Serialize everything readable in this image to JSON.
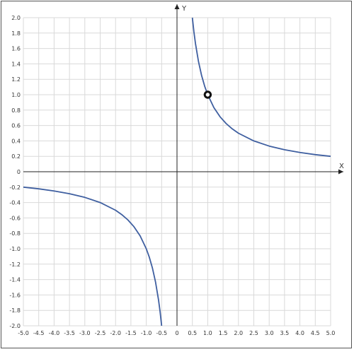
{
  "chart_data": {
    "type": "line",
    "function": "y = 1/x",
    "xlabel": "X",
    "ylabel": "Y",
    "xlim": [
      -5.0,
      5.0
    ],
    "ylim": [
      -2.0,
      2.0
    ],
    "xstep": 0.5,
    "ystep": 0.2,
    "x_tick_labels": [
      "-5.0",
      "-4.5",
      "-4.0",
      "-3.5",
      "-3.0",
      "-2.5",
      "-2.0",
      "-1.5",
      "-1.0",
      "-0.5",
      "0",
      "0.5",
      "1.0",
      "1.5",
      "2.0",
      "2.5",
      "3.0",
      "3.5",
      "4.0",
      "4.5",
      "5.0"
    ],
    "y_tick_labels": [
      "2.0",
      "1.8",
      "1.6",
      "1.4",
      "1.2",
      "1.0",
      "0.8",
      "0.6",
      "0.4",
      "0.2",
      "0",
      "-0.2",
      "-0.4",
      "-0.6",
      "-0.8",
      "-1.0",
      "-1.2",
      "-1.4",
      "-1.6",
      "-1.8",
      "-2.0"
    ],
    "grid": true,
    "series": [
      {
        "color": "#3f5fa0",
        "x": [
          0.5,
          0.55,
          0.6,
          0.7,
          0.8,
          0.9,
          1.0,
          1.2,
          1.4,
          1.6,
          1.8,
          2.0,
          2.5,
          3.0,
          3.5,
          4.0,
          4.5,
          5.0
        ],
        "y": [
          2.0,
          1.818,
          1.667,
          1.429,
          1.25,
          1.111,
          1.0,
          0.833,
          0.714,
          0.625,
          0.556,
          0.5,
          0.4,
          0.333,
          0.286,
          0.25,
          0.222,
          0.2
        ]
      },
      {
        "color": "#3f5fa0",
        "x": [
          -5.0,
          -4.5,
          -4.0,
          -3.5,
          -3.0,
          -2.5,
          -2.0,
          -1.8,
          -1.6,
          -1.4,
          -1.2,
          -1.0,
          -0.9,
          -0.8,
          -0.7,
          -0.6,
          -0.55,
          -0.5
        ],
        "y": [
          -0.2,
          -0.222,
          -0.25,
          -0.286,
          -0.333,
          -0.4,
          -0.5,
          -0.556,
          -0.625,
          -0.714,
          -0.833,
          -1.0,
          -1.111,
          -1.25,
          -1.429,
          -1.667,
          -1.818,
          -2.0
        ]
      }
    ],
    "highlight_point": {
      "x": 1.0,
      "y": 1.0
    }
  }
}
